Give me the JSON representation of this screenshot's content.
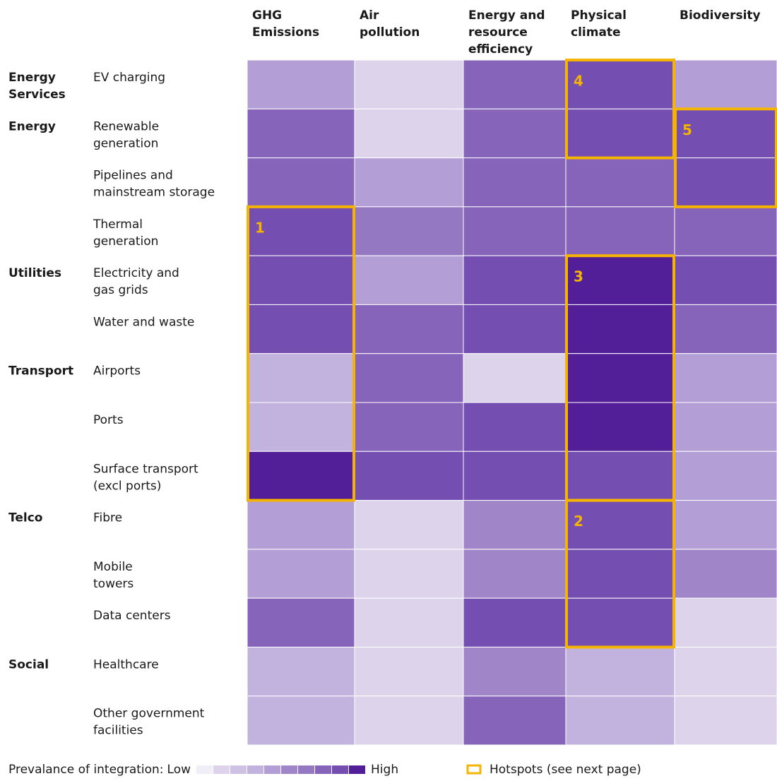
{
  "chart_data": {
    "type": "heatmap",
    "columns": [
      "GHG\nEmissions",
      "Air\npollution",
      "Energy and\nresource\nefficiency",
      "Physical\nclimate",
      "Biodiversity"
    ],
    "rows": [
      "EV charging",
      "Renewable\ngeneration",
      "Pipelines and\nmainstream storage",
      "Thermal\ngeneration",
      "Electricity and\ngas grids",
      "Water and waste",
      "Airports",
      "Ports",
      "Surface transport\n(excl ports)",
      "Fibre",
      "Mobile\ntowers",
      "Data centers",
      "Healthcare",
      "Other government\nfacilities"
    ],
    "groups": [
      {
        "name": "Energy\nServices",
        "size": 1
      },
      {
        "name": "Energy",
        "size": 3
      },
      {
        "name": "Utilities",
        "size": 2
      },
      {
        "name": "Transport",
        "size": 3
      },
      {
        "name": "Telco",
        "size": 3
      },
      {
        "name": "Social",
        "size": 2
      }
    ],
    "values": [
      [
        5,
        2,
        8,
        9,
        5
      ],
      [
        8,
        2,
        8,
        9,
        9
      ],
      [
        8,
        5,
        8,
        8,
        9
      ],
      [
        9,
        7,
        8,
        8,
        8
      ],
      [
        9,
        5,
        9,
        10,
        9
      ],
      [
        9,
        8,
        9,
        10,
        8
      ],
      [
        4,
        8,
        2,
        10,
        5
      ],
      [
        4,
        8,
        9,
        10,
        5
      ],
      [
        10,
        9,
        9,
        9,
        5
      ],
      [
        5,
        2,
        6,
        9,
        5
      ],
      [
        5,
        2,
        6,
        9,
        6
      ],
      [
        8,
        2,
        9,
        9,
        2
      ],
      [
        4,
        2,
        6,
        4,
        2
      ],
      [
        4,
        2,
        8,
        4,
        2
      ]
    ],
    "zlim": [
      1,
      10
    ],
    "colors": [
      "#f0eef7",
      "#ddd4ec",
      "#cdc1e4",
      "#c2b2de",
      "#b39fd5",
      "#a086c8",
      "#9478c2",
      "#8664b9",
      "#744eb0",
      "#521f98"
    ],
    "hotspot_color": "#f5b400",
    "hotspots": [
      {
        "label": "1",
        "column": 0,
        "first_row": 3,
        "last_row": 8
      },
      {
        "label": "2",
        "column": 3,
        "first_row": 9,
        "last_row": 11
      },
      {
        "label": "3",
        "column": 3,
        "first_row": 4,
        "last_row": 8
      },
      {
        "label": "4",
        "column": 3,
        "first_row": 0,
        "last_row": 1
      },
      {
        "label": "5",
        "column": 4,
        "first_row": 1,
        "last_row": 2
      }
    ],
    "legend": {
      "title": "Prevalance of integration:",
      "low": "Low",
      "high": "High",
      "hotspot": "Hotspots (see next page)"
    }
  }
}
